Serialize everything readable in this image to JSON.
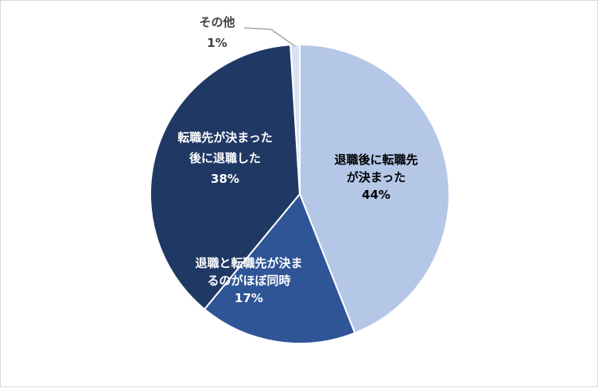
{
  "chart_data": {
    "type": "pie",
    "title": "",
    "slices": [
      {
        "label_lines": [
          "退職後に転職先",
          "が決まった"
        ],
        "value": 44,
        "pct_label": "44%",
        "color": "#b4c7e7",
        "text_color": "#000000"
      },
      {
        "label_lines": [
          "退職と転職先が決ま",
          "るのがほぼ同時"
        ],
        "value": 17,
        "pct_label": "17%",
        "color": "#2f5597",
        "text_color": "#ffffff"
      },
      {
        "label_lines": [
          "転職先が決まった",
          "後に退職した"
        ],
        "value": 38,
        "pct_label": "38%",
        "color": "#203864",
        "text_color": "#ffffff"
      },
      {
        "label_lines": [
          "その他"
        ],
        "value": 1,
        "pct_label": "1%",
        "color": "#dae3f3",
        "text_color": "#404040"
      }
    ],
    "legend": "none",
    "data_labels": "inside, category name and percentage"
  }
}
